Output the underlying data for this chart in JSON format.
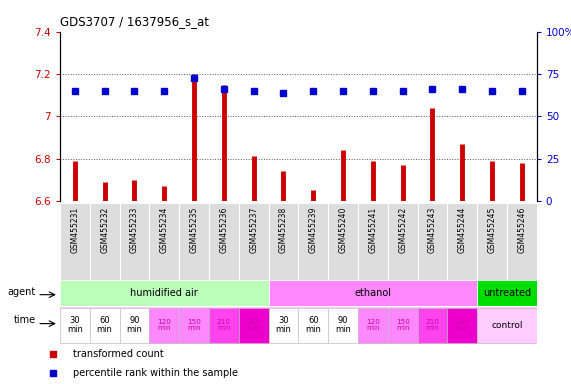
{
  "title": "GDS3707 / 1637956_s_at",
  "samples": [
    "GSM455231",
    "GSM455232",
    "GSM455233",
    "GSM455234",
    "GSM455235",
    "GSM455236",
    "GSM455237",
    "GSM455238",
    "GSM455239",
    "GSM455240",
    "GSM455241",
    "GSM455242",
    "GSM455243",
    "GSM455244",
    "GSM455245",
    "GSM455246"
  ],
  "red_values": [
    6.79,
    6.69,
    6.7,
    6.67,
    7.2,
    7.15,
    6.81,
    6.74,
    6.65,
    6.84,
    6.79,
    6.77,
    7.04,
    6.87,
    6.79,
    6.78
  ],
  "blue_values": [
    7.12,
    7.12,
    7.12,
    7.12,
    7.18,
    7.13,
    7.12,
    7.11,
    7.12,
    7.12,
    7.12,
    7.12,
    7.13,
    7.13,
    7.12,
    7.12
  ],
  "ylim_left": [
    6.6,
    7.4
  ],
  "ylim_right": [
    0,
    100
  ],
  "yticks_left": [
    6.6,
    6.8,
    7.0,
    7.2,
    7.4
  ],
  "yticks_right": [
    0,
    25,
    50,
    75,
    100
  ],
  "ytick_labels_left": [
    "6.6",
    "6.8",
    "7",
    "7.2",
    "7.4"
  ],
  "ytick_labels_right": [
    "0",
    "25",
    "50",
    "75",
    "100%"
  ],
  "agent_groups": [
    {
      "label": "humidified air",
      "start": 0,
      "end": 7,
      "color": "#bbffbb"
    },
    {
      "label": "ethanol",
      "start": 7,
      "end": 14,
      "color": "#ff88ff"
    },
    {
      "label": "untreated",
      "start": 14,
      "end": 16,
      "color": "#00dd00"
    }
  ],
  "time_cell_colors": [
    "#ffffff",
    "#ffffff",
    "#ffffff",
    "#ff88ff",
    "#ff88ff",
    "#ff44ee",
    "#ee00cc",
    "#ffffff",
    "#ffffff",
    "#ffffff",
    "#ff88ff",
    "#ff88ff",
    "#ff44ee",
    "#ee00cc",
    "#ffccff",
    "#ffccff"
  ],
  "time_texts": [
    "30\nmin",
    "60\nmin",
    "90\nmin",
    "120\nmin",
    "150\nmin",
    "210\nmin",
    "240\nmin",
    "30\nmin",
    "60\nmin",
    "90\nmin",
    "120\nmin",
    "150\nmin",
    "210\nmin",
    "240\nmin",
    "",
    ""
  ],
  "time_text_colors": [
    "#000000",
    "#000000",
    "#000000",
    "#cc00aa",
    "#cc00aa",
    "#cc00aa",
    "#cc00aa",
    "#000000",
    "#000000",
    "#000000",
    "#cc00aa",
    "#cc00aa",
    "#cc00aa",
    "#cc00aa",
    "#000000",
    "#000000"
  ],
  "control_label": "control",
  "bar_color": "#cc0000",
  "dot_color": "#0000cc",
  "grid_color": "#555555",
  "axis_color_left": "#cc0000",
  "axis_color_right": "#0000cc",
  "sample_bg_color": "#dddddd",
  "legend_items": [
    {
      "color": "#cc0000",
      "label": "transformed count"
    },
    {
      "color": "#0000cc",
      "label": "percentile rank within the sample"
    }
  ]
}
